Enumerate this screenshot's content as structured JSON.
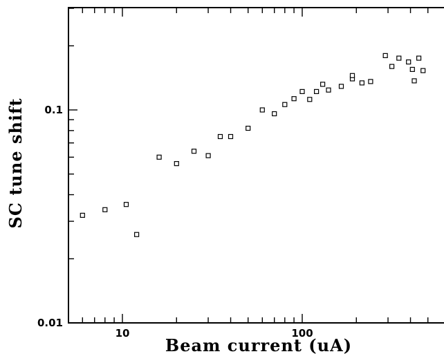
{
  "chart_data": {
    "type": "scatter",
    "title": "",
    "xlabel": "Beam current (uA)",
    "ylabel": "SC tune shift",
    "x_scale": "log",
    "y_scale": "log",
    "xlim": [
      5,
      500
    ],
    "ylim": [
      0.01,
      0.3
    ],
    "grid": false,
    "legend": "none",
    "x_tick_labels": [
      "10",
      "100"
    ],
    "y_tick_labels": [
      "0.01",
      "0.1"
    ],
    "series": [
      {
        "marker": "open-square",
        "color": "#000000",
        "points": [
          [
            6,
            0.032
          ],
          [
            8,
            0.034
          ],
          [
            10.5,
            0.036
          ],
          [
            12,
            0.026
          ],
          [
            16,
            0.06
          ],
          [
            20,
            0.056
          ],
          [
            25,
            0.064
          ],
          [
            30,
            0.061
          ],
          [
            35,
            0.075
          ],
          [
            40,
            0.075
          ],
          [
            50,
            0.082
          ],
          [
            60,
            0.1
          ],
          [
            70,
            0.096
          ],
          [
            80,
            0.106
          ],
          [
            90,
            0.113
          ],
          [
            100,
            0.122
          ],
          [
            110,
            0.112
          ],
          [
            120,
            0.122
          ],
          [
            130,
            0.132
          ],
          [
            140,
            0.124
          ],
          [
            165,
            0.129
          ],
          [
            190,
            0.14
          ],
          [
            190,
            0.145
          ],
          [
            215,
            0.134
          ],
          [
            240,
            0.136
          ],
          [
            290,
            0.18
          ],
          [
            315,
            0.16
          ],
          [
            345,
            0.175
          ],
          [
            390,
            0.168
          ],
          [
            410,
            0.155
          ],
          [
            420,
            0.137
          ],
          [
            445,
            0.175
          ],
          [
            470,
            0.153
          ]
        ]
      }
    ]
  }
}
